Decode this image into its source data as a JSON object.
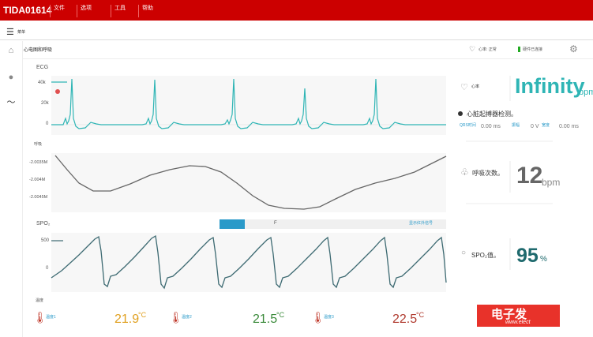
{
  "titlebar": {
    "app_title": "TIDA01614",
    "menus": [
      "文件",
      "选项",
      "工具",
      "帮助"
    ]
  },
  "toolbar": {
    "breadcrumb": "菜单"
  },
  "subbar": {
    "title": "心电图和呼吸",
    "hr_label": "心率: 正常",
    "conn_label": "硬件已连接"
  },
  "ecg": {
    "label": "ECG",
    "yticks": [
      "40k",
      "20k",
      "0"
    ]
  },
  "resp": {
    "label": "呼吸",
    "yticks": [
      "-2.0035M",
      "-2.004M",
      "-2.0045M"
    ]
  },
  "spo2": {
    "label": "SPO₂",
    "yticks": [
      "500",
      "0"
    ],
    "slider_text": "F",
    "link_text": "显示红外信号"
  },
  "panel": {
    "hr_label": "心率",
    "hr_value": "Infinity",
    "hr_unit": "bpm",
    "pace_label": "心脏起搏器检测。",
    "metrics": [
      {
        "label": "QRS时间",
        "value": "0.00 ms"
      },
      {
        "label": "振幅",
        "value": "0 V"
      },
      {
        "label": "宽度",
        "value": "0.00 ms"
      }
    ],
    "rr_label": "呼吸次数。",
    "rr_value": "12",
    "rr_unit": "bpm",
    "spo2_label": "SPO₂值。",
    "spo2_value": "95",
    "spo2_unit": "%"
  },
  "temperature": {
    "label": "温度",
    "sensors": [
      {
        "label": "温度1",
        "value": "21.9",
        "unit": "°C",
        "color": "#e0a020"
      },
      {
        "label": "温度2",
        "value": "21.5",
        "unit": "°C",
        "color": "#3a8a3a"
      },
      {
        "label": "温度3",
        "value": "22.5",
        "unit": "°C",
        "color": "#b03a2e"
      }
    ]
  },
  "logo": {
    "main": "电子发",
    "sub": "www.elect"
  },
  "colors": {
    "accent": "#cc0000",
    "ecg": "#2fb5b5",
    "resp": "#666666",
    "spo2": "#3d6a72"
  }
}
